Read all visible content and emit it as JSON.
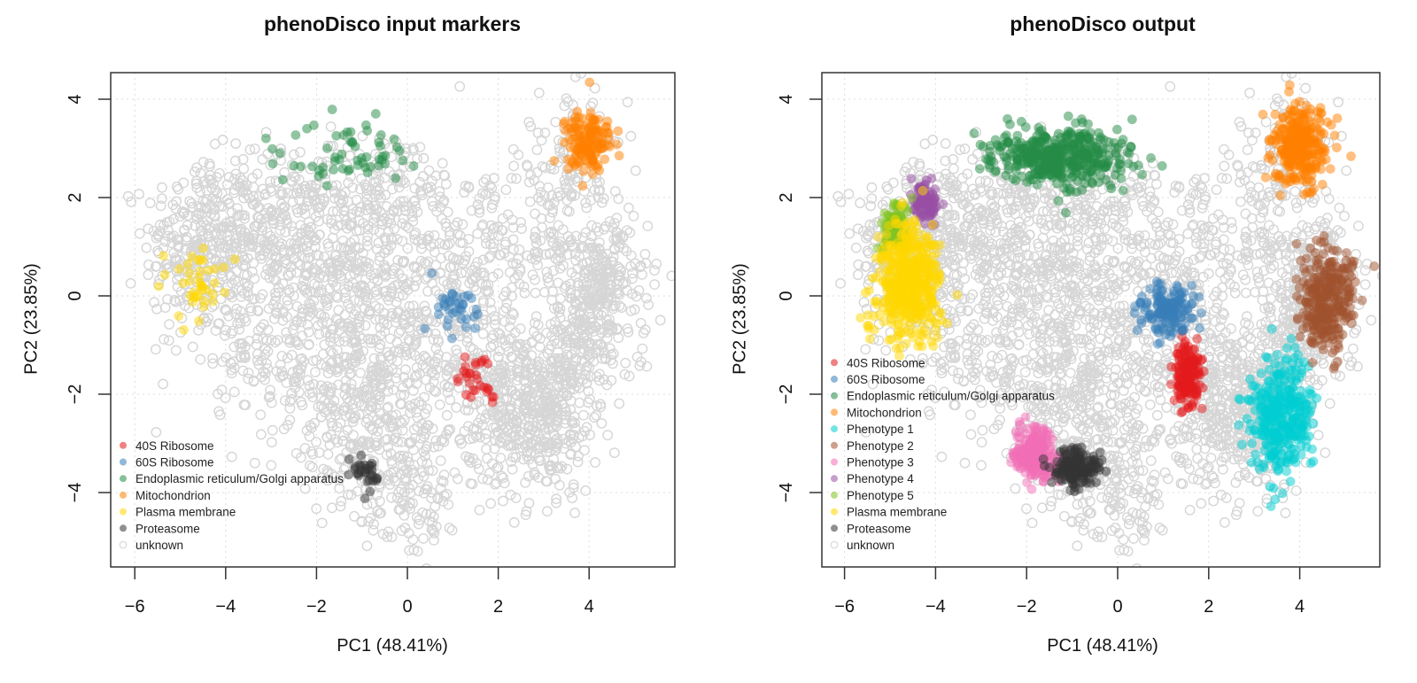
{
  "figure": {
    "panels": [
      {
        "title": "phenoDisco input markers",
        "xlabel": "PC1 (48.41%)",
        "ylabel": "PC2 (23.85%)"
      },
      {
        "title": "phenoDisco output",
        "xlabel": "PC1 (48.41%)",
        "ylabel": "PC2 (23.85%)"
      }
    ]
  },
  "chart_data": [
    {
      "type": "scatter",
      "title": "phenoDisco input markers",
      "xlabel": "PC1 (48.41%)",
      "ylabel": "PC2 (23.85%)",
      "xlim": [
        -6.5,
        5.9
      ],
      "ylim": [
        -5.5,
        4.4
      ],
      "xticks": [
        -6,
        -4,
        -2,
        0,
        2,
        4
      ],
      "yticks": [
        -4,
        -2,
        0,
        2,
        4
      ],
      "grid": "dotted",
      "legend_position": "bottomleft",
      "legend": [
        {
          "label": "40S Ribosome",
          "color": "#E41A1C"
        },
        {
          "label": "60S Ribosome",
          "color": "#377EB8"
        },
        {
          "label": "Endoplasmic reticulum/Golgi apparatus",
          "color": "#238B45"
        },
        {
          "label": "Mitochondrion",
          "color": "#FF7F00"
        },
        {
          "label": "Plasma membrane",
          "color": "#FFD700"
        },
        {
          "label": "Proteasome",
          "color": "#333333"
        },
        {
          "label": "unknown",
          "color": "#D9D9D9",
          "open": true
        }
      ],
      "series": [
        {
          "name": "40S Ribosome",
          "color": "#E41A1C",
          "center": [
            1.5,
            -1.75
          ],
          "spread": [
            0.25,
            0.3
          ],
          "count": 30
        },
        {
          "name": "60S Ribosome",
          "color": "#377EB8",
          "center": [
            1.1,
            -0.2
          ],
          "spread": [
            0.3,
            0.25
          ],
          "count": 35
        },
        {
          "name": "Endoplasmic reticulum/Golgi apparatus",
          "color": "#238B45",
          "center": [
            -1.2,
            2.9
          ],
          "spread": [
            0.7,
            0.3
          ],
          "count": 60
        },
        {
          "name": "Mitochondrion",
          "color": "#FF7F00",
          "center": [
            4.0,
            3.1
          ],
          "spread": [
            0.3,
            0.35
          ],
          "count": 140
        },
        {
          "name": "Plasma membrane",
          "color": "#FFD700",
          "center": [
            -4.7,
            0.2
          ],
          "spread": [
            0.35,
            0.4
          ],
          "count": 40
        },
        {
          "name": "Proteasome",
          "color": "#333333",
          "center": [
            -0.9,
            -3.6
          ],
          "spread": [
            0.25,
            0.15
          ],
          "count": 30
        }
      ]
    },
    {
      "type": "scatter",
      "title": "phenoDisco output",
      "xlabel": "PC1 (48.41%)",
      "ylabel": "PC2 (23.85%)",
      "xlim": [
        -6.5,
        5.7
      ],
      "ylim": [
        -5.5,
        4.4
      ],
      "xticks": [
        -6,
        -4,
        -2,
        0,
        2,
        4
      ],
      "yticks": [
        -4,
        -2,
        0,
        2,
        4
      ],
      "grid": "dotted",
      "legend_position": "bottomleft",
      "legend": [
        {
          "label": "40S Ribosome",
          "color": "#E41A1C"
        },
        {
          "label": "60S Ribosome",
          "color": "#377EB8"
        },
        {
          "label": "Endoplasmic reticulum/Golgi apparatus",
          "color": "#238B45"
        },
        {
          "label": "Mitochondrion",
          "color": "#FF7F00"
        },
        {
          "label": "Phenotype 1",
          "color": "#00CED1"
        },
        {
          "label": "Phenotype 2",
          "color": "#A0522D"
        },
        {
          "label": "Phenotype 3",
          "color": "#F26DB5"
        },
        {
          "label": "Phenotype 4",
          "color": "#984EA3"
        },
        {
          "label": "Phenotype 5",
          "color": "#7FC41F"
        },
        {
          "label": "Plasma membrane",
          "color": "#FFD700"
        },
        {
          "label": "Proteasome",
          "color": "#333333"
        },
        {
          "label": "unknown",
          "color": "#D9D9D9",
          "open": true
        }
      ],
      "series": [
        {
          "name": "40S Ribosome",
          "color": "#E41A1C",
          "center": [
            1.55,
            -1.6
          ],
          "spread": [
            0.15,
            0.35
          ],
          "count": 150
        },
        {
          "name": "60S Ribosome",
          "color": "#377EB8",
          "center": [
            1.1,
            -0.3
          ],
          "spread": [
            0.3,
            0.25
          ],
          "count": 140
        },
        {
          "name": "Endoplasmic reticulum/Golgi apparatus",
          "color": "#238B45",
          "center": [
            -1.3,
            2.8
          ],
          "spread": [
            0.75,
            0.3
          ],
          "count": 420
        },
        {
          "name": "Mitochondrion",
          "color": "#FF7F00",
          "center": [
            4.0,
            3.1
          ],
          "spread": [
            0.3,
            0.38
          ],
          "count": 300
        },
        {
          "name": "Phenotype 1",
          "color": "#00CED1",
          "center": [
            3.6,
            -2.4
          ],
          "spread": [
            0.35,
            0.6
          ],
          "count": 350
        },
        {
          "name": "Phenotype 2",
          "color": "#A0522D",
          "center": [
            4.6,
            -0.1
          ],
          "spread": [
            0.3,
            0.5
          ],
          "count": 300
        },
        {
          "name": "Phenotype 3",
          "color": "#F26DB5",
          "center": [
            -1.8,
            -3.2
          ],
          "spread": [
            0.25,
            0.3
          ],
          "count": 200
        },
        {
          "name": "Phenotype 4",
          "color": "#984EA3",
          "center": [
            -4.2,
            1.9
          ],
          "spread": [
            0.15,
            0.2
          ],
          "count": 80
        },
        {
          "name": "Phenotype 5",
          "color": "#7FC41F",
          "center": [
            -4.9,
            1.4
          ],
          "spread": [
            0.15,
            0.25
          ],
          "count": 80
        },
        {
          "name": "Plasma membrane",
          "color": "#FFD700",
          "center": [
            -4.6,
            0.3
          ],
          "spread": [
            0.35,
            0.55
          ],
          "count": 450
        },
        {
          "name": "Proteasome",
          "color": "#333333",
          "center": [
            -0.9,
            -3.5
          ],
          "spread": [
            0.25,
            0.18
          ],
          "count": 160
        }
      ]
    }
  ]
}
